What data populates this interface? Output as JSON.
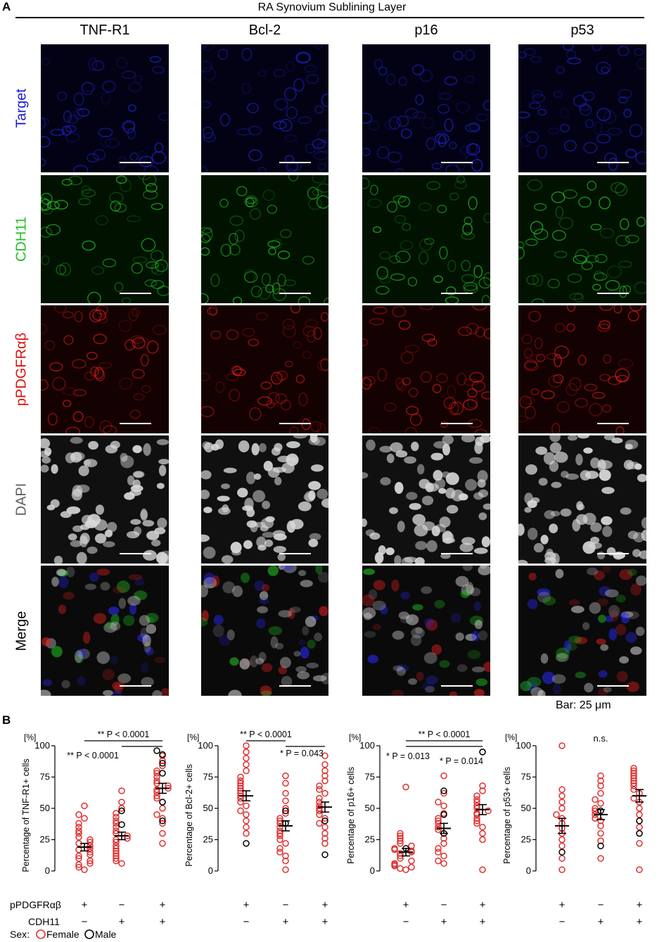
{
  "panel_a": {
    "letter": "A",
    "title": "RA Synovium Sublining Layer",
    "columns": [
      "TNF-R1",
      "Bcl-2",
      "p16",
      "p53"
    ],
    "rows": [
      {
        "label": "Target",
        "color": "#1a1ad6",
        "bg": "#020214",
        "fg": "#2a2aff"
      },
      {
        "label": "CDH11",
        "color": "#22c022",
        "bg": "#011201",
        "fg": "#2ee82e"
      },
      {
        "label": "pPDGFRαβ",
        "color": "#e01010",
        "bg": "#140101",
        "fg": "#ff2020"
      },
      {
        "label": "DAPI",
        "color": "#606060",
        "bg": "#101010",
        "fg": "#d8d8d8"
      },
      {
        "label": "Merge",
        "color": "#000000",
        "bg": "#0a0a0a",
        "fg": "#cfcfcf"
      }
    ],
    "scale_bar": "Bar: 25 μm"
  },
  "panel_b": {
    "letter": "B",
    "sex_legend": {
      "prefix": "Sex:",
      "female": "Female",
      "male": "Male",
      "female_color": "#e03030",
      "male_color": "#000000"
    },
    "row_labels": {
      "pdgfr": "pPDGFRαβ",
      "cdh11": "CDH11"
    },
    "chart_data": [
      {
        "type": "scatter",
        "ylabel": "Percentage of TNF-R1+ cells",
        "unit": "[%]",
        "ylim": [
          0,
          100
        ],
        "yticks": [
          0,
          25,
          50,
          75,
          100
        ],
        "groups": [
          {
            "pdgfr": "+",
            "cdh11": "−",
            "mean": 19,
            "sem": 3,
            "female": [
              52,
              45,
              42,
              38,
              35,
              32,
              30,
              27,
              25,
              23,
              22,
              20,
              18,
              17,
              15,
              13,
              12,
              10,
              8,
              6,
              5,
              3,
              1
            ],
            "male": []
          },
          {
            "pdgfr": "−",
            "cdh11": "+",
            "mean": 28,
            "sem": 3,
            "female": [
              64,
              55,
              50,
              46,
              43,
              40,
              38,
              35,
              32,
              30,
              28,
              26,
              25,
              23,
              20,
              18,
              16,
              14,
              12,
              10,
              8,
              6
            ],
            "male": [
              48,
              37
            ]
          },
          {
            "pdgfr": "+",
            "cdh11": "+",
            "mean": 66,
            "sem": 4,
            "female": [
              92,
              88,
              84,
              80,
              78,
              75,
              72,
              70,
              68,
              66,
              65,
              63,
              60,
              58,
              55,
              50,
              45,
              42,
              38,
              30,
              22
            ],
            "male": [
              96,
              93,
              86,
              78,
              55,
              40
            ]
          }
        ],
        "annotations": [
          {
            "from": 0,
            "to": 2,
            "text": "** P < 0.0001",
            "level": 1
          },
          {
            "from": 1,
            "to": 2,
            "text": "** P < 0.0001",
            "level": 2
          }
        ]
      },
      {
        "type": "scatter",
        "ylabel": "Percentage of Bcl-2+ cells",
        "unit": "[%]",
        "ylim": [
          0,
          100
        ],
        "yticks": [
          0,
          25,
          50,
          75,
          100
        ],
        "groups": [
          {
            "pdgfr": "+",
            "cdh11": "−",
            "mean": 60,
            "sem": 4,
            "female": [
              100,
              95,
              90,
              85,
              80,
              75,
              72,
              70,
              68,
              66,
              64,
              62,
              60,
              58,
              55,
              52,
              48,
              45,
              40,
              35,
              30
            ],
            "male": [
              22
            ]
          },
          {
            "pdgfr": "−",
            "cdh11": "+",
            "mean": 36,
            "sem": 4,
            "female": [
              76,
              70,
              62,
              56,
              50,
              46,
              42,
              40,
              38,
              35,
              32,
              30,
              28,
              25,
              22,
              18,
              15,
              12,
              8,
              1
            ],
            "male": [
              48,
              38
            ]
          },
          {
            "pdgfr": "+",
            "cdh11": "+",
            "mean": 51,
            "sem": 4,
            "female": [
              92,
              85,
              80,
              76,
              72,
              68,
              65,
              62,
              58,
              55,
              52,
              50,
              48,
              45,
              42,
              38,
              35,
              30,
              26,
              22
            ],
            "male": [
              13,
              40
            ]
          }
        ],
        "annotations": [
          {
            "from": 0,
            "to": 1,
            "text": "** P < 0.0001",
            "level": 1
          },
          {
            "from": 1,
            "to": 2,
            "text": "* P = 0.043",
            "level": 2
          }
        ]
      },
      {
        "type": "scatter",
        "ylabel": "Percentage of p16+ cells",
        "unit": "[%]",
        "ylim": [
          0,
          100
        ],
        "yticks": [
          0,
          25,
          50,
          75,
          100
        ],
        "groups": [
          {
            "pdgfr": "+",
            "cdh11": "−",
            "mean": 15,
            "sem": 3,
            "female": [
              67,
              30,
              28,
              26,
              24,
              22,
              20,
              18,
              17,
              16,
              15,
              14,
              12,
              10,
              8,
              6,
              5,
              4,
              3,
              2,
              1
            ],
            "male": [
              18
            ]
          },
          {
            "pdgfr": "−",
            "cdh11": "+",
            "mean": 34,
            "sem": 4,
            "female": [
              76,
              62,
              55,
              52,
              46,
              42,
              40,
              38,
              35,
              33,
              30,
              26,
              22,
              18,
              15,
              12,
              8,
              6
            ],
            "male": [
              64,
              45,
              30
            ]
          },
          {
            "pdgfr": "+",
            "cdh11": "+",
            "mean": 49,
            "sem": 4,
            "female": [
              95,
              68,
              64,
              60,
              57,
              55,
              52,
              50,
              48,
              46,
              45,
              42,
              40,
              38,
              35,
              30,
              25,
              1
            ],
            "male": [
              95
            ]
          }
        ],
        "annotations": [
          {
            "from": 0,
            "to": 2,
            "text": "** P < 0.0001",
            "level": 1
          },
          {
            "from": 0,
            "to": 1,
            "text": "* P = 0.013",
            "level": 2
          },
          {
            "from": 1,
            "to": 2,
            "text": "* P = 0.014",
            "level": 2
          }
        ]
      },
      {
        "type": "scatter",
        "ylabel": "Percentage of p53+ cells",
        "unit": "[%]",
        "ylim": [
          0,
          100
        ],
        "yticks": [
          0,
          25,
          50,
          75,
          100
        ],
        "groups": [
          {
            "pdgfr": "+",
            "cdh11": "−",
            "mean": 36,
            "sem": 6,
            "female": [
              100,
              65,
              60,
              55,
              50,
              45,
              42,
              38,
              34,
              30,
              25,
              20,
              10,
              1
            ],
            "male": [
              15
            ]
          },
          {
            "pdgfr": "−",
            "cdh11": "+",
            "mean": 45,
            "sem": 4,
            "female": [
              76,
              72,
              68,
              62,
              57,
              54,
              50,
              48,
              45,
              42,
              40,
              36,
              30,
              24,
              10
            ],
            "male": [
              48,
              20
            ]
          },
          {
            "pdgfr": "+",
            "cdh11": "+",
            "mean": 60,
            "sem": 5,
            "female": [
              82,
              80,
              78,
              76,
              74,
              72,
              70,
              68,
              65,
              62,
              58,
              55,
              50,
              45,
              40,
              35,
              30,
              22,
              1
            ],
            "male": [
              40,
              30
            ]
          }
        ],
        "annotations": [
          {
            "text": "n.s.",
            "level": 0
          }
        ]
      }
    ]
  }
}
